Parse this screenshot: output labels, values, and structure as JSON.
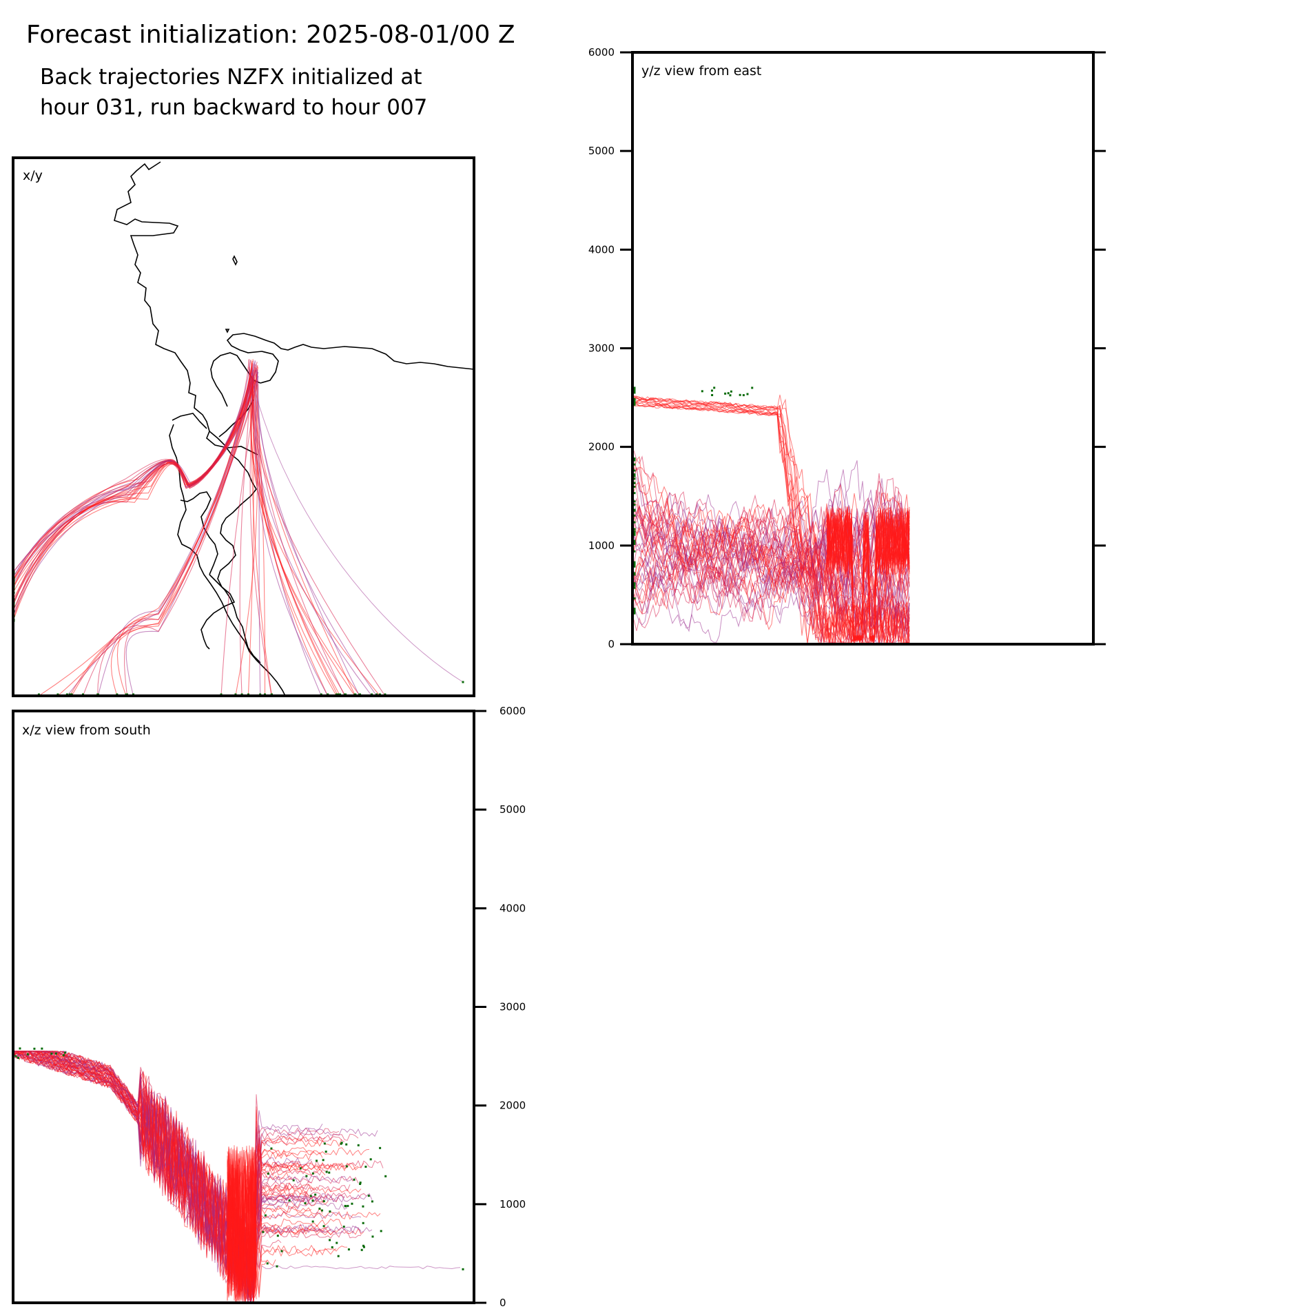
{
  "header": {
    "title": "Forecast initialization: 2025-08-01/00 Z",
    "subtitle_line1": "Back trajectories NZFX initialized at",
    "subtitle_line2": "hour 031, run backward to hour 007"
  },
  "colors": {
    "trajectory_red": "#ff1a1a",
    "trajectory_crimson": "#d81b4a",
    "trajectory_purple": "#9b2f8f",
    "endpoint_marker": "#0a6b0a",
    "coastline": "#000000",
    "frame": "#000000"
  },
  "chart_data": [
    {
      "id": "xy",
      "type": "line",
      "panel_label": "x/y",
      "description_of_content": "map view of trajectories with coastline",
      "series_count": 60
    },
    {
      "id": "yz",
      "type": "line",
      "panel_label": "y/z view from east",
      "ylim": [
        0,
        6000
      ],
      "yticks": [
        "0",
        "1000",
        "2000",
        "3000",
        "4000",
        "5000",
        "6000"
      ],
      "ytick_side": "left",
      "series_count": 60
    },
    {
      "id": "xz",
      "type": "line",
      "panel_label": "x/z view from south",
      "ylim": [
        0,
        6000
      ],
      "yticks": [
        "0",
        "1000",
        "2000",
        "3000",
        "4000",
        "5000",
        "6000"
      ],
      "ytick_side": "right",
      "series_count": 60
    }
  ]
}
